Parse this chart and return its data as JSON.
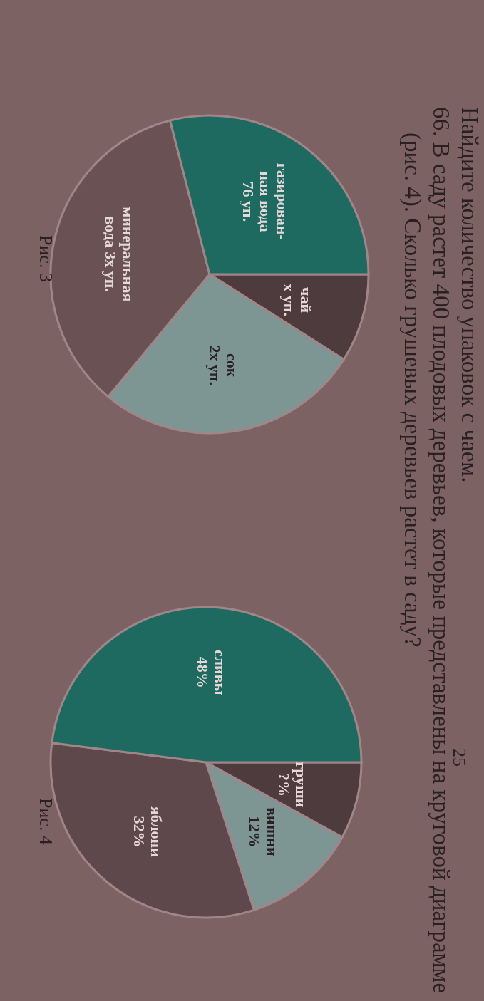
{
  "chart_data": [
    {
      "type": "pie",
      "title": "Найдите количество упаковок с чаем.",
      "categories": [
        "чай\nx уп.",
        "сок\n2x уп.",
        "минеральная\nвода 3x уп.",
        "газирован-\nная вода\n76 уп."
      ],
      "values": [
        9,
        27,
        35,
        29
      ],
      "colors": [
        "#4d3b3e",
        "#7e9693",
        "#6a5254",
        "#1e6a61"
      ],
      "annotations": [
        "Рис. 3",
        "25"
      ]
    },
    {
      "type": "pie",
      "title": "66. В саду растет 400 плодовых деревьев, которые представлены на круговой диаграмме (рис. 4). Сколько грушевых деревьев растет в саду?",
      "categories": [
        "груши\n?%",
        "вишни\n12%",
        "яблони\n32%",
        "сливы\n48%"
      ],
      "values": [
        8,
        12,
        32,
        48
      ],
      "colors": [
        "#4d3b3e",
        "#7e9693",
        "#5f484b",
        "#1e6a61"
      ],
      "annotations": [
        "Рис. 4"
      ]
    }
  ]
}
